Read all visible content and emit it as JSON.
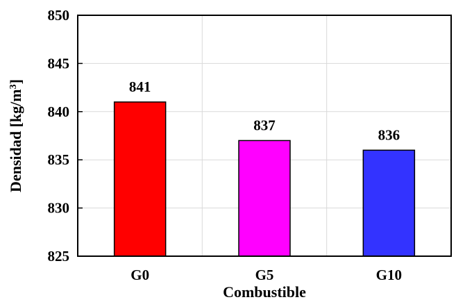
{
  "chart_data": {
    "type": "bar",
    "title": "",
    "xlabel": "Combustible",
    "ylabel_text": "Densidad  [kg/m",
    "ylabel_superscript": "3",
    "ylabel_close": "]",
    "categories": [
      "G0",
      "G5",
      "G10"
    ],
    "values": [
      841,
      837,
      836
    ],
    "data_labels": [
      "841",
      "837",
      "836"
    ],
    "bar_colors": [
      "#ff0000",
      "#ff00ff",
      "#3333ff"
    ],
    "ylim": [
      825,
      850
    ],
    "yticks": [
      825,
      830,
      835,
      840,
      845,
      850
    ],
    "grid": true,
    "legend": "none"
  }
}
